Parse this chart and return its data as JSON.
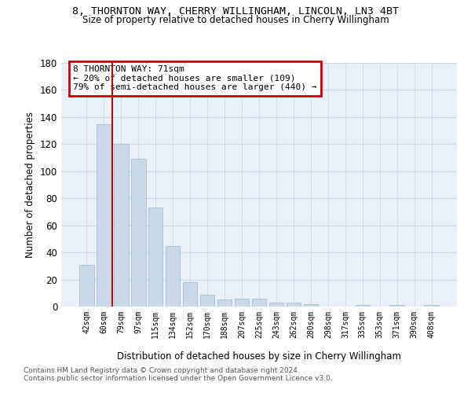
{
  "title_line1": "8, THORNTON WAY, CHERRY WILLINGHAM, LINCOLN, LN3 4BT",
  "title_line2": "Size of property relative to detached houses in Cherry Willingham",
  "xlabel": "Distribution of detached houses by size in Cherry Willingham",
  "ylabel": "Number of detached properties",
  "footer_line1": "Contains HM Land Registry data © Crown copyright and database right 2024.",
  "footer_line2": "Contains public sector information licensed under the Open Government Licence v3.0.",
  "categories": [
    "42sqm",
    "60sqm",
    "79sqm",
    "97sqm",
    "115sqm",
    "134sqm",
    "152sqm",
    "170sqm",
    "188sqm",
    "207sqm",
    "225sqm",
    "243sqm",
    "262sqm",
    "280sqm",
    "298sqm",
    "317sqm",
    "335sqm",
    "353sqm",
    "371sqm",
    "390sqm",
    "408sqm"
  ],
  "values": [
    31,
    135,
    120,
    109,
    73,
    45,
    18,
    9,
    5,
    6,
    6,
    3,
    3,
    2,
    0,
    0,
    1,
    0,
    1,
    0,
    1
  ],
  "bar_color": "#c9d9e8",
  "bar_edge_color": "#a8bece",
  "grid_color": "#c8d8e8",
  "bg_color": "#eaf0f8",
  "annotation_text": "8 THORNTON WAY: 71sqm\n← 20% of detached houses are smaller (109)\n79% of semi-detached houses are larger (440) →",
  "annotation_box_color": "#ffffff",
  "annotation_border_color": "#cc0000",
  "red_line_index": 1.5,
  "ylim": [
    0,
    180
  ],
  "yticks": [
    0,
    20,
    40,
    60,
    80,
    100,
    120,
    140,
    160,
    180
  ]
}
